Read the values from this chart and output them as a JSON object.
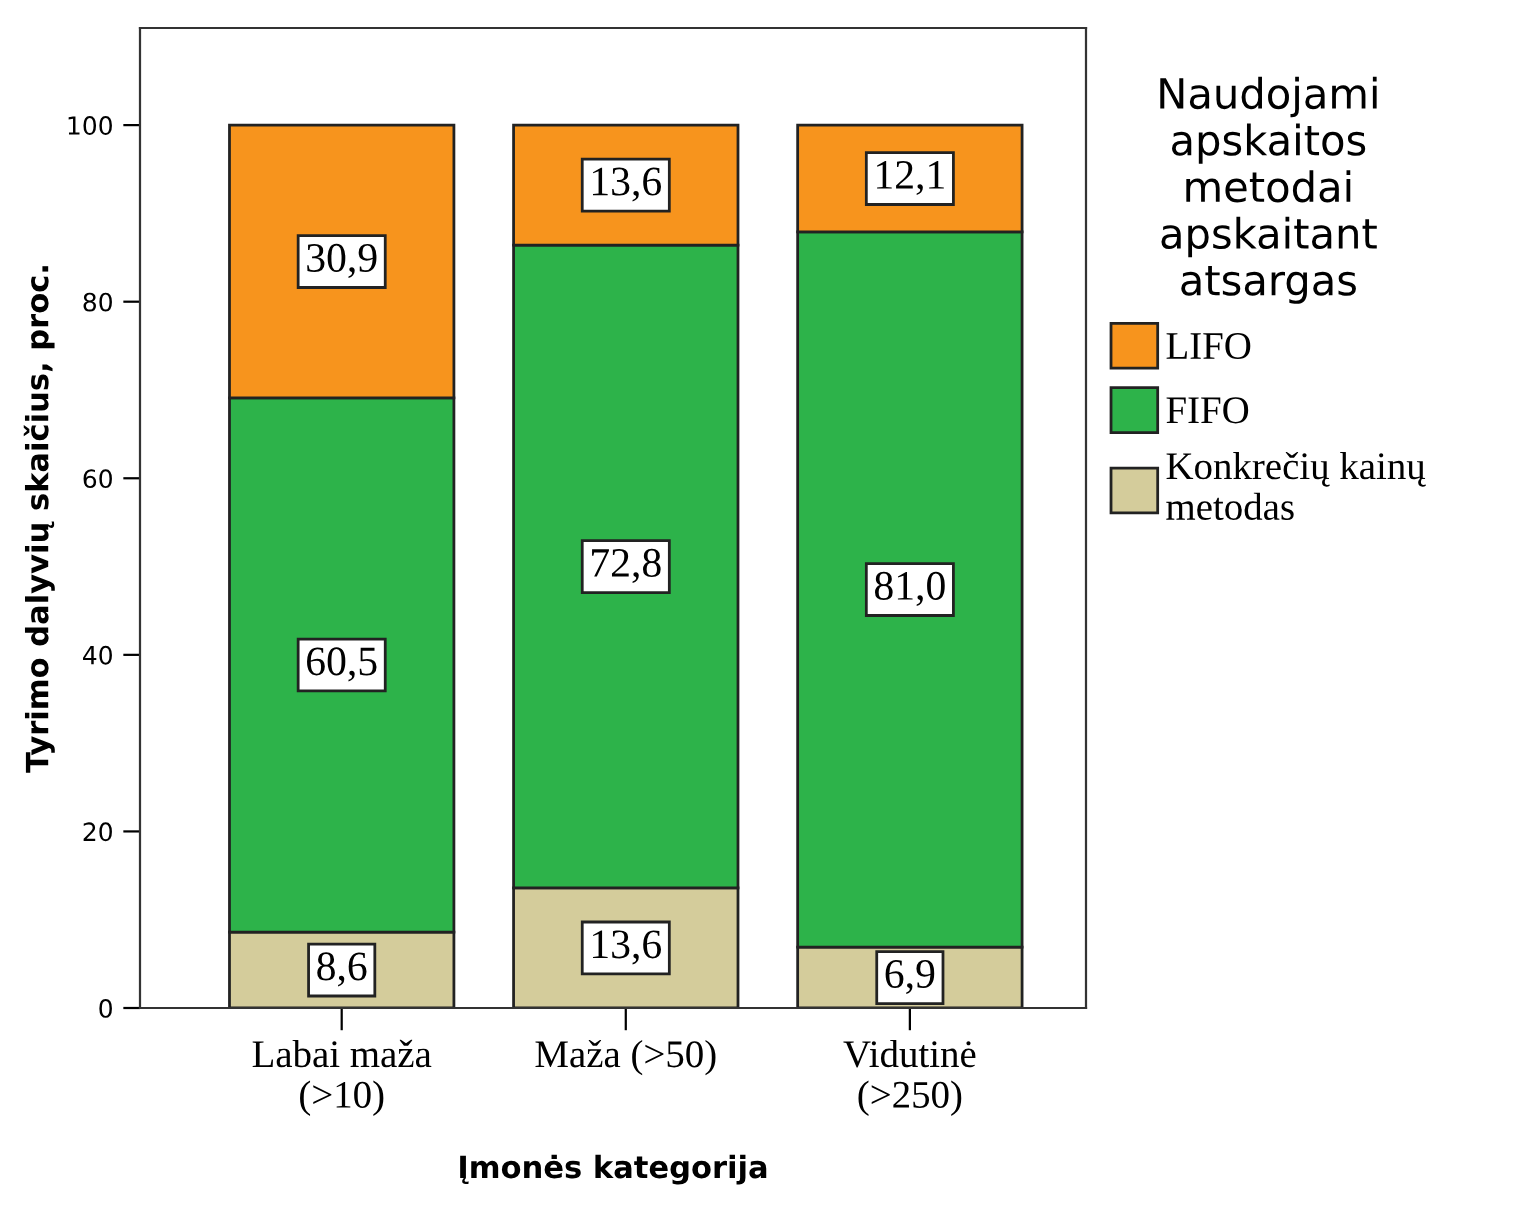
{
  "chart_data": {
    "type": "bar",
    "stacked": true,
    "categories": [
      "Labai maža (>10)",
      "Maža (>50)",
      "Vidutinė (>250)"
    ],
    "series": [
      {
        "name": "Konkrečių kainų metodas",
        "color": "#d4cc9b",
        "values": [
          8.6,
          13.6,
          6.9
        ],
        "value_labels": [
          "8,6",
          "13,6",
          "6,9"
        ]
      },
      {
        "name": "FIFO",
        "color": "#2db34a",
        "values": [
          60.5,
          72.8,
          81.0
        ],
        "value_labels": [
          "60,5",
          "72,8",
          "81,0"
        ]
      },
      {
        "name": "LIFO",
        "color": "#f7941d",
        "values": [
          30.9,
          13.6,
          12.1
        ],
        "value_labels": [
          "30,9",
          "13,6",
          "12,1"
        ]
      }
    ],
    "xlabel": "Įmonės kategorija",
    "ylabel": "Tyrimo dalyvių skaičius, proc.",
    "legend_title": "Naudojami apskaitos metodai apskaitant atsargas",
    "ylim": [
      0,
      111
    ],
    "yticks": [
      0,
      20,
      40,
      60,
      80,
      100
    ],
    "grid": false,
    "legend": "right"
  }
}
